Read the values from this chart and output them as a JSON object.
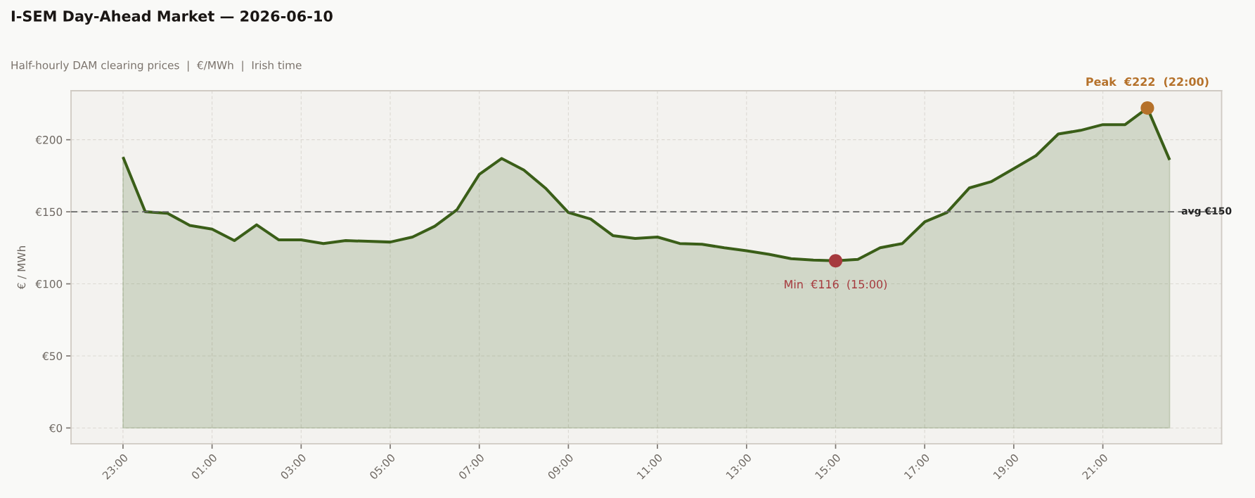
{
  "chart_data": {
    "type": "area",
    "title": "I-SEM Day-Ahead Market — 2026-06-10",
    "subtitle": "Half-hourly DAM clearing prices  |  €/MWh  |  Irish time",
    "ylabel": "€ / MWh",
    "x": [
      "2026-06-09T23:00",
      "2026-06-09T23:30",
      "2026-06-10T00:00",
      "2026-06-10T00:30",
      "2026-06-10T01:00",
      "2026-06-10T01:30",
      "2026-06-10T02:00",
      "2026-06-10T02:30",
      "2026-06-10T03:00",
      "2026-06-10T03:30",
      "2026-06-10T04:00",
      "2026-06-10T04:30",
      "2026-06-10T05:00",
      "2026-06-10T05:30",
      "2026-06-10T06:00",
      "2026-06-10T06:30",
      "2026-06-10T07:00",
      "2026-06-10T07:30",
      "2026-06-10T08:00",
      "2026-06-10T08:30",
      "2026-06-10T09:00",
      "2026-06-10T09:30",
      "2026-06-10T10:00",
      "2026-06-10T10:30",
      "2026-06-10T11:00",
      "2026-06-10T11:30",
      "2026-06-10T12:00",
      "2026-06-10T12:30",
      "2026-06-10T13:00",
      "2026-06-10T13:30",
      "2026-06-10T14:00",
      "2026-06-10T14:30",
      "2026-06-10T15:00",
      "2026-06-10T15:30",
      "2026-06-10T16:00",
      "2026-06-10T16:30",
      "2026-06-10T17:00",
      "2026-06-10T17:30",
      "2026-06-10T18:00",
      "2026-06-10T18:30",
      "2026-06-10T19:00",
      "2026-06-10T19:30",
      "2026-06-10T20:00",
      "2026-06-10T20:30",
      "2026-06-10T21:00",
      "2026-06-10T21:30",
      "2026-06-10T22:00",
      "2026-06-10T22:30"
    ],
    "series": [
      {
        "color": "#3a5e18",
        "values": [
          188,
          150,
          149,
          140.5,
          138,
          130,
          141,
          130.5,
          130.5,
          128,
          130,
          129.5,
          129,
          132.5,
          140,
          151.5,
          176,
          187,
          179,
          166,
          149.5,
          145,
          133.5,
          131.5,
          132.5,
          128,
          127.5,
          125,
          123,
          120.5,
          117.5,
          116.5,
          116,
          117,
          125,
          128,
          143,
          149.5,
          166.5,
          171,
          180,
          189,
          204,
          206.5,
          210.5,
          210.5,
          222,
          186
        ]
      },
      {
        "type": "scatter",
        "marker": "circle",
        "x": [
          "2026-06-10T15:00",
          "2026-06-10T22:00"
        ],
        "values": [
          116,
          222
        ],
        "colors": [
          "#a63a3e",
          "#b5712a"
        ]
      }
    ],
    "xlim": [
      "2026-06-09T21:50",
      "2026-06-10T23:40"
    ],
    "xticks": [
      {
        "value": "2026-06-09T23:00",
        "label": "23:00"
      },
      {
        "value": "2026-06-10T01:00",
        "label": "01:00"
      },
      {
        "value": "2026-06-10T03:00",
        "label": "03:00"
      },
      {
        "value": "2026-06-10T05:00",
        "label": "05:00"
      },
      {
        "value": "2026-06-10T07:00",
        "label": "07:00"
      },
      {
        "value": "2026-06-10T09:00",
        "label": "09:00"
      },
      {
        "value": "2026-06-10T11:00",
        "label": "11:00"
      },
      {
        "value": "2026-06-10T13:00",
        "label": "13:00"
      },
      {
        "value": "2026-06-10T15:00",
        "label": "15:00"
      },
      {
        "value": "2026-06-10T17:00",
        "label": "17:00"
      },
      {
        "value": "2026-06-10T19:00",
        "label": "19:00"
      },
      {
        "value": "2026-06-10T21:00",
        "label": "21:00"
      }
    ],
    "ylim": [
      -11,
      234
    ],
    "yticks": [
      {
        "value": 0,
        "label": "€0"
      },
      {
        "value": 50,
        "label": "€50"
      },
      {
        "value": 100,
        "label": "€100"
      },
      {
        "value": 150,
        "label": "€150"
      },
      {
        "value": 200,
        "label": "€200"
      }
    ],
    "grid": true,
    "ref_lines": [
      {
        "axis": "y",
        "value": 150,
        "label": "avg €150",
        "color": "#666666",
        "line_style": "dashed"
      }
    ],
    "annotations": [
      {
        "text": "Min  €116  (15:00)",
        "x": "2026-06-10T15:00",
        "y": 116
      },
      {
        "text": "Peak  €222  (22:00)",
        "x": "2026-06-10T22:00",
        "y": 222
      }
    ]
  }
}
